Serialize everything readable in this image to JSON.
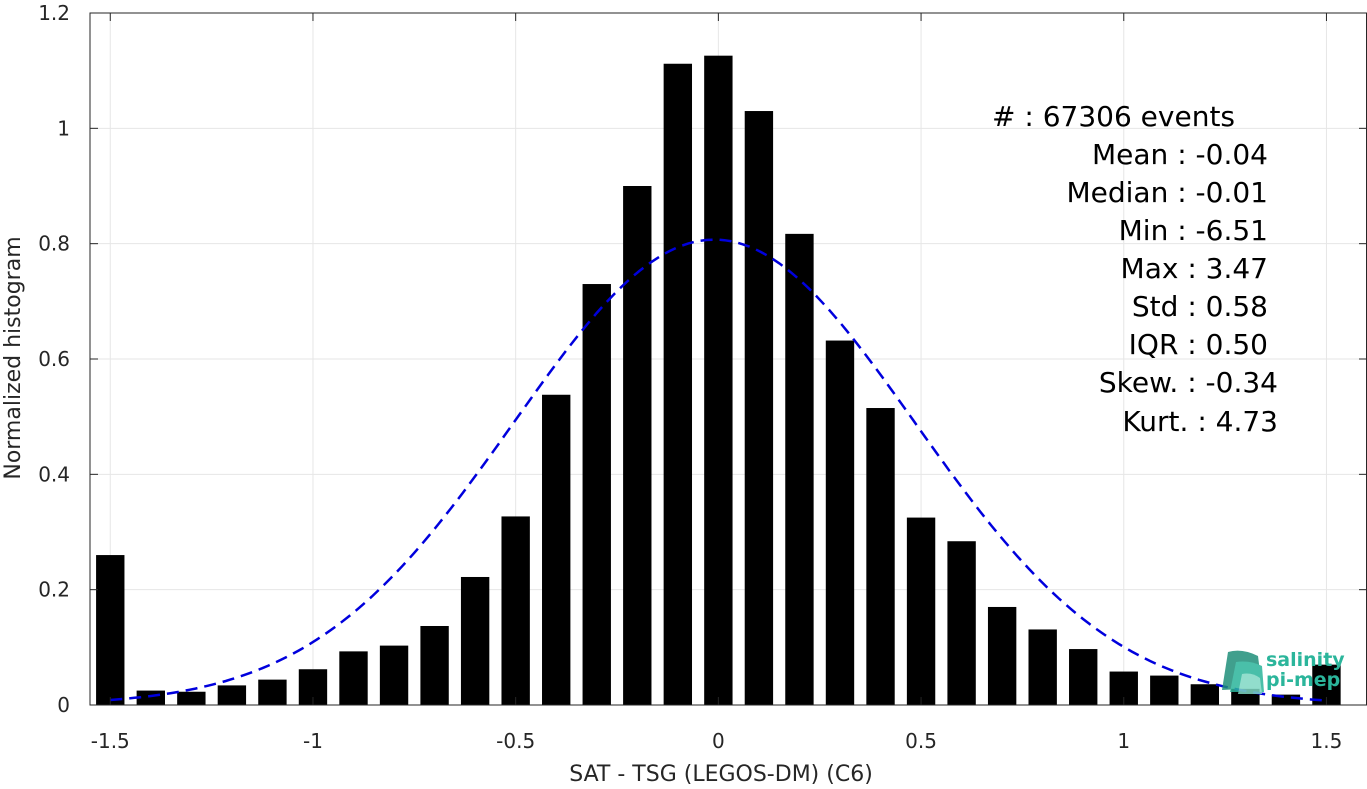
{
  "chart_data": {
    "type": "bar",
    "xlabel": "SAT - TSG (LEGOS-DM) (C6)",
    "ylabel": "Normalized histogram",
    "xlim": [
      -1.55,
      1.6
    ],
    "ylim": [
      0,
      1.2
    ],
    "x_ticks": [
      -1.5,
      -1,
      -0.5,
      0,
      0.5,
      1,
      1.5
    ],
    "x_tick_labels": [
      "-1.5",
      "-1",
      "-0.5",
      "0",
      "0.5",
      "1",
      "1.5"
    ],
    "y_ticks": [
      0,
      0.2,
      0.4,
      0.6,
      0.8,
      1.0,
      1.2
    ],
    "y_tick_labels": [
      "0",
      "0.2",
      "0.4",
      "0.6",
      "0.8",
      "1",
      "1.2"
    ],
    "grid": true,
    "bar_width": 0.07,
    "bars": {
      "x": [
        -1.5,
        -1.4,
        -1.3,
        -1.2,
        -1.1,
        -1.0,
        -0.9,
        -0.8,
        -0.7,
        -0.6,
        -0.5,
        -0.4,
        -0.3,
        -0.2,
        -0.1,
        0.0,
        0.1,
        0.2,
        0.3,
        0.4,
        0.5,
        0.6,
        0.7,
        0.8,
        0.9,
        1.0,
        1.1,
        1.2,
        1.3,
        1.4,
        1.5
      ],
      "values": [
        0.26,
        0.025,
        0.023,
        0.034,
        0.044,
        0.062,
        0.093,
        0.103,
        0.137,
        0.222,
        0.327,
        0.538,
        0.73,
        0.9,
        1.112,
        1.126,
        1.03,
        0.817,
        0.632,
        0.515,
        0.325,
        0.284,
        0.17,
        0.131,
        0.097,
        0.058,
        0.051,
        0.036,
        0.028,
        0.018,
        0.07
      ],
      "color": "#000000"
    },
    "fit_curve": {
      "style": "dashed",
      "color": "#0000dd",
      "mean": -0.01,
      "std": 0.495,
      "peak": 0.807,
      "x_range": [
        -1.5,
        1.5
      ]
    },
    "stats_lines": [
      "#  : 67306 events",
      "Mean : -0.04",
      "Median : -0.01",
      "Min : -6.51",
      "Max : 3.47",
      "Std : 0.58",
      "IQR : 0.50",
      "Skew. : -0.34",
      "Kurt. : 4.73"
    ],
    "logo": {
      "line1": "salinity",
      "line2": "pi-mep",
      "color": "#2bb59b"
    }
  }
}
